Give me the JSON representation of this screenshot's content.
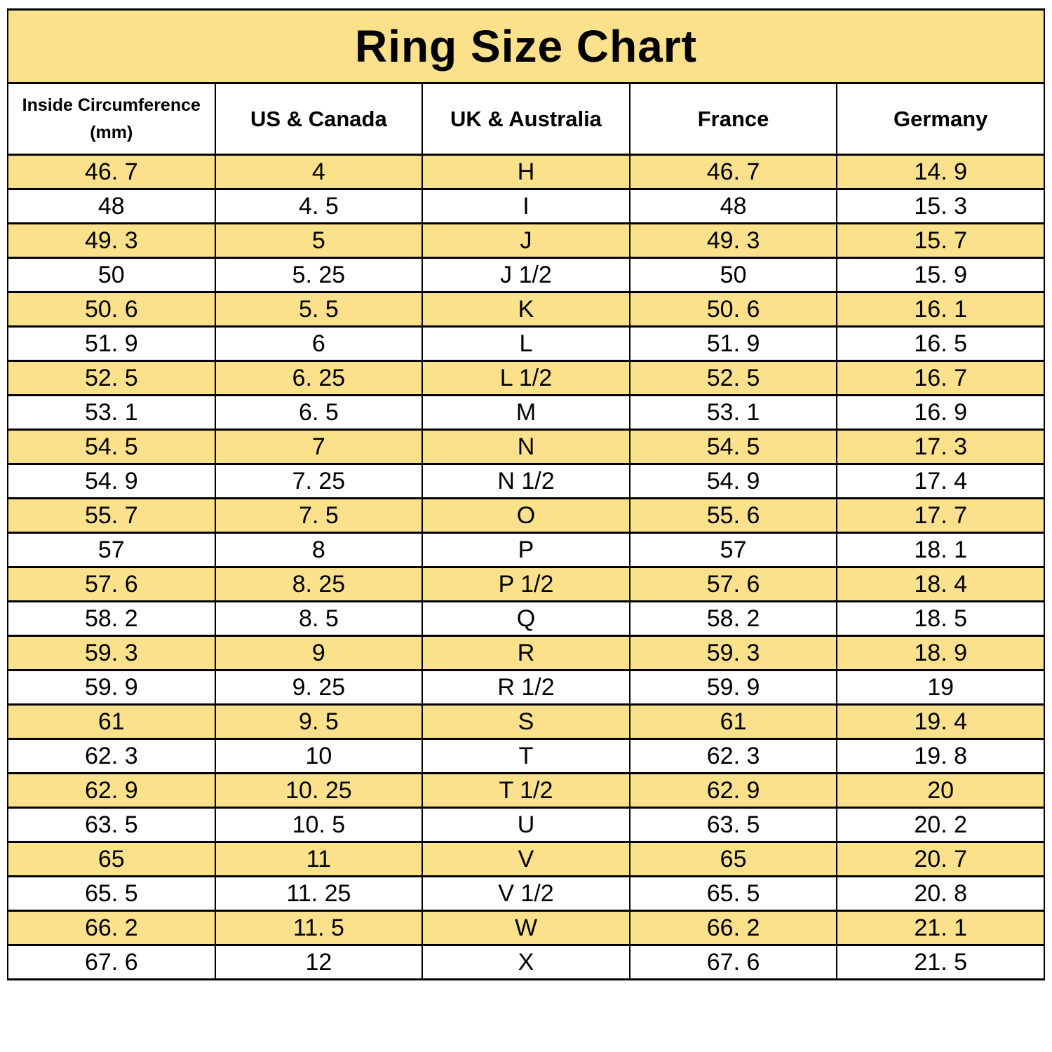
{
  "title": "Ring Size Chart",
  "colors": {
    "highlight_row_background": "#fbe18c",
    "plain_row_background": "#ffffff",
    "border": "#000000",
    "text": "#000000"
  },
  "chart_data": {
    "type": "table",
    "title": "Ring Size Chart",
    "columns": [
      {
        "label": "Inside Circumference",
        "sublabel": "(mm)"
      },
      {
        "label": "US & Canada",
        "sublabel": ""
      },
      {
        "label": "UK & Australia",
        "sublabel": ""
      },
      {
        "label": "France",
        "sublabel": ""
      },
      {
        "label": "Germany",
        "sublabel": ""
      }
    ],
    "rows": [
      [
        "46. 7",
        "4",
        "H",
        "46. 7",
        "14. 9"
      ],
      [
        "48",
        "4. 5",
        "I",
        "48",
        "15. 3"
      ],
      [
        "49. 3",
        "5",
        "J",
        "49. 3",
        "15. 7"
      ],
      [
        "50",
        "5. 25",
        "J 1/2",
        "50",
        "15. 9"
      ],
      [
        "50. 6",
        "5. 5",
        "K",
        "50. 6",
        "16. 1"
      ],
      [
        "51. 9",
        "6",
        "L",
        "51. 9",
        "16. 5"
      ],
      [
        "52. 5",
        "6. 25",
        "L 1/2",
        "52. 5",
        "16. 7"
      ],
      [
        "53. 1",
        "6. 5",
        "M",
        "53. 1",
        "16. 9"
      ],
      [
        "54. 5",
        "7",
        "N",
        "54. 5",
        "17. 3"
      ],
      [
        "54. 9",
        "7. 25",
        "N 1/2",
        "54. 9",
        "17. 4"
      ],
      [
        "55. 7",
        "7. 5",
        "O",
        "55. 6",
        "17. 7"
      ],
      [
        "57",
        "8",
        "P",
        "57",
        "18. 1"
      ],
      [
        "57. 6",
        "8. 25",
        "P 1/2",
        "57. 6",
        "18. 4"
      ],
      [
        "58. 2",
        "8. 5",
        "Q",
        "58. 2",
        "18. 5"
      ],
      [
        "59. 3",
        "9",
        "R",
        "59. 3",
        "18. 9"
      ],
      [
        "59. 9",
        "9. 25",
        "R 1/2",
        "59. 9",
        "19"
      ],
      [
        "61",
        "9. 5",
        "S",
        "61",
        "19. 4"
      ],
      [
        "62. 3",
        "10",
        "T",
        "62. 3",
        "19. 8"
      ],
      [
        "62. 9",
        "10. 25",
        "T 1/2",
        "62. 9",
        "20"
      ],
      [
        "63. 5",
        "10. 5",
        "U",
        "63. 5",
        "20. 2"
      ],
      [
        "65",
        "11",
        "V",
        "65",
        "20. 7"
      ],
      [
        "65. 5",
        "11. 25",
        "V 1/2",
        "65. 5",
        "20. 8"
      ],
      [
        "66. 2",
        "11. 5",
        "W",
        "66. 2",
        "21. 1"
      ],
      [
        "67. 6",
        "12",
        "X",
        "67. 6",
        "21. 5"
      ]
    ],
    "layout_hints": {
      "striping": "first data row highlighted, then alternating",
      "equal_column_widths": true
    }
  }
}
